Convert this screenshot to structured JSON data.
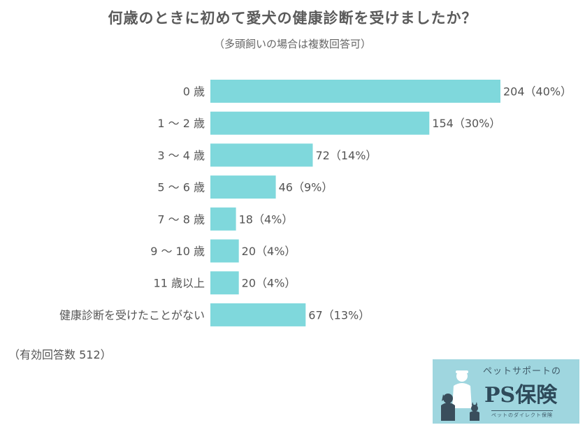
{
  "chart_data": {
    "type": "bar",
    "orientation": "horizontal",
    "title": "何歳のときに初めて愛犬の健康診断を受けましたか？",
    "subtitle": "（多頭飼いの場合は複数回答可）",
    "categories": [
      "0 歳",
      "1 〜 2 歳",
      "3 〜 4 歳",
      "5 〜 6 歳",
      "7 〜 8 歳",
      "9 〜 10 歳",
      "11 歳以上",
      "健康診断を受けたことがない"
    ],
    "values": [
      204,
      154,
      72,
      46,
      18,
      20,
      20,
      67
    ],
    "value_labels": [
      "204（40%）",
      "154（30%）",
      "72（14%）",
      "46（9%）",
      "18（4%）",
      "20（4%）",
      "20（4%）",
      "67（13%）"
    ],
    "xlim": [
      0,
      204
    ],
    "grid": false,
    "bar_color": "#7fd8dc",
    "note": "（有効回答数 512）"
  },
  "logo": {
    "tagline": "ペットサポートの",
    "name": "PS保険",
    "sub": "ペットのダイレクト保険",
    "background": "#9fd6df"
  }
}
